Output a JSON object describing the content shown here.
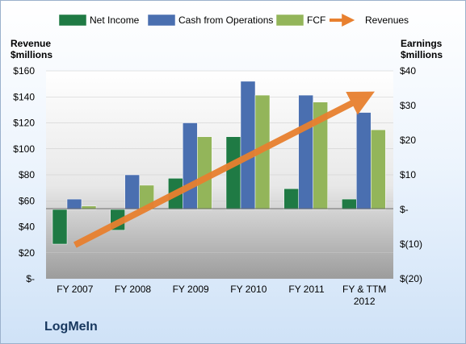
{
  "company_name": "LogMeIn",
  "chart_data": {
    "type": "bar",
    "categories": [
      "FY 2007",
      "FY 2008",
      "FY 2009",
      "FY 2010",
      "FY 2011",
      "FY & TTM 2012"
    ],
    "left_axis_label": [
      "Revenue",
      "$millions"
    ],
    "right_axis_label": [
      "Earnings",
      "$millions"
    ],
    "left_ticks": [
      "$-",
      "$20",
      "$40",
      "$60",
      "$80",
      "$100",
      "$120",
      "$140",
      "$160"
    ],
    "right_ticks": [
      "$(20)",
      "$(10)",
      "$-",
      "$10",
      "$20",
      "$30",
      "$40"
    ],
    "ylim_left": [
      0,
      160
    ],
    "ylim_right": [
      -20,
      40
    ],
    "legend_position": "top",
    "series": [
      {
        "name": "Net Income",
        "axis": "right",
        "type": "bar",
        "color": "#1f7a44",
        "values": [
          -10,
          -6,
          9,
          21,
          6,
          3
        ]
      },
      {
        "name": "Cash from Operations",
        "axis": "right",
        "type": "bar",
        "color": "#4a6fb0",
        "values": [
          3,
          10,
          25,
          37,
          33,
          28
        ]
      },
      {
        "name": "FCF",
        "axis": "right",
        "type": "bar",
        "color": "#93b55a",
        "values": [
          1,
          7,
          21,
          33,
          31,
          23
        ]
      },
      {
        "name": "Revenues",
        "axis": "left",
        "type": "line",
        "color": "#e8802f",
        "values": [
          26,
          52,
          75,
          100,
          120,
          140
        ]
      }
    ]
  }
}
